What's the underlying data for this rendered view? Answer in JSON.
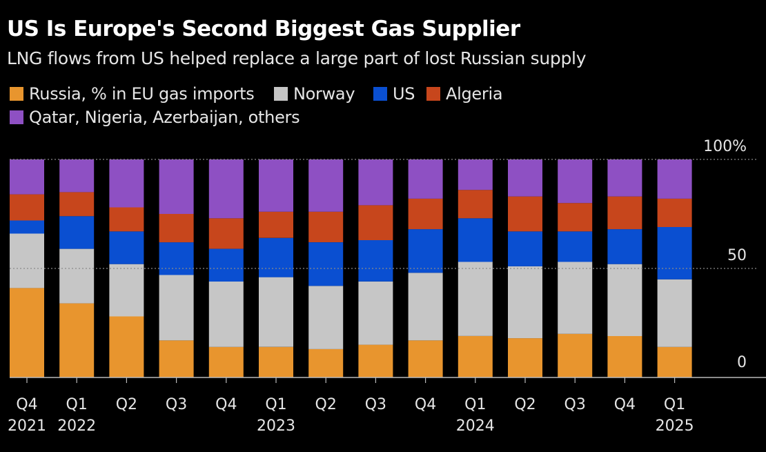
{
  "title": "US Is Europe's Second Biggest Gas Supplier",
  "subtitle": "LNG flows from US helped replace a large part of lost Russian supply",
  "colors": {
    "russia": "#e8952e",
    "norway": "#c6c6c6",
    "us": "#0a4fd1",
    "algeria": "#c7461c",
    "others": "#8e50c3",
    "grid": "#8a8a8a",
    "axis": "#bbbbbb"
  },
  "chart_data": {
    "type": "bar",
    "stacked": true,
    "title": "US Is Europe's Second Biggest Gas Supplier",
    "subtitle": "LNG flows from US helped replace a large part of lost Russian supply",
    "categories": [
      "Q4 2021",
      "Q1 2022",
      "Q2",
      "Q3",
      "Q4",
      "Q1 2023",
      "Q2",
      "Q3",
      "Q4",
      "Q1 2024",
      "Q2",
      "Q3",
      "Q4",
      "Q1 2025"
    ],
    "tick_labels": [
      [
        "Q4",
        "2021"
      ],
      [
        "Q1",
        "2022"
      ],
      [
        "Q2",
        ""
      ],
      [
        "Q3",
        ""
      ],
      [
        "Q4",
        ""
      ],
      [
        "Q1",
        "2023"
      ],
      [
        "Q2",
        ""
      ],
      [
        "Q3",
        ""
      ],
      [
        "Q4",
        ""
      ],
      [
        "Q1",
        "2024"
      ],
      [
        "Q2",
        ""
      ],
      [
        "Q3",
        ""
      ],
      [
        "Q4",
        ""
      ],
      [
        "Q1",
        "2025"
      ]
    ],
    "series": [
      {
        "name": "Russia, % in EU gas imports",
        "key": "russia",
        "values": [
          41,
          34,
          28,
          17,
          14,
          14,
          13,
          15,
          17,
          19,
          18,
          20,
          19,
          14
        ]
      },
      {
        "name": "Norway",
        "key": "norway",
        "values": [
          25,
          25,
          24,
          30,
          30,
          32,
          29,
          29,
          31,
          34,
          33,
          33,
          33,
          31
        ]
      },
      {
        "name": "US",
        "key": "us",
        "values": [
          6,
          15,
          15,
          15,
          15,
          18,
          20,
          19,
          20,
          20,
          16,
          14,
          16,
          24
        ]
      },
      {
        "name": "Algeria",
        "key": "algeria",
        "values": [
          12,
          11,
          11,
          13,
          14,
          12,
          14,
          16,
          14,
          13,
          16,
          13,
          15,
          13
        ]
      },
      {
        "name": "Qatar, Nigeria, Azerbaijan, others",
        "key": "others",
        "values": [
          16,
          15,
          22,
          25,
          27,
          24,
          24,
          21,
          18,
          14,
          17,
          20,
          17,
          18
        ]
      }
    ],
    "y_ticks": [
      {
        "value": 0,
        "label": "0"
      },
      {
        "value": 50,
        "label": "50"
      },
      {
        "value": 100,
        "label": "100%"
      }
    ],
    "ylim": [
      0,
      100
    ],
    "grid": "dotted at 50 and 100",
    "legend": "top-left"
  }
}
